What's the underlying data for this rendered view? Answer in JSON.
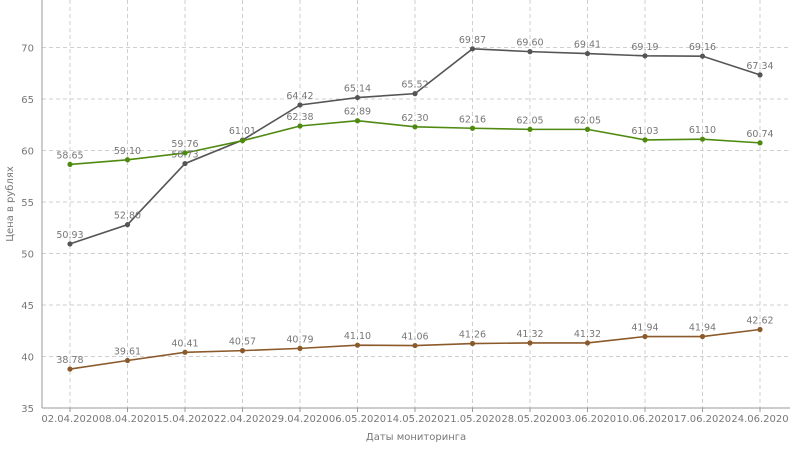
{
  "chart_data": {
    "type": "line",
    "xlabel": "Даты мониторинга",
    "ylabel": "Цена в рублях",
    "ylim": [
      35,
      72
    ],
    "yticks": [
      35,
      40,
      45,
      50,
      55,
      60,
      65,
      70
    ],
    "grid": true,
    "categories": [
      "02.04.2020",
      "08.04.2020",
      "15.04.2020",
      "22.04.2020",
      "29.04.2020",
      "06.05.2020",
      "14.05.2020",
      "21.05.2020",
      "28.05.2020",
      "03.06.2020",
      "10.06.2020",
      "17.06.2020",
      "24.06.2020"
    ],
    "series": [
      {
        "color": "#555555",
        "values": [
          50.93,
          52.8,
          58.73,
          61.01,
          64.42,
          65.14,
          65.52,
          69.87,
          69.6,
          69.41,
          69.19,
          69.16,
          67.34
        ],
        "labels": [
          "50.93",
          "52.80",
          "58.73",
          "61.01",
          "64.42",
          "65.14",
          "65.52",
          "69.87",
          "69.60",
          "69.41",
          "69.19",
          "69.16",
          "67.34"
        ]
      },
      {
        "color": "#4f8a10",
        "values": [
          58.65,
          59.1,
          59.76,
          60.95,
          62.38,
          62.89,
          62.3,
          62.16,
          62.05,
          62.05,
          61.03,
          61.1,
          60.74
        ],
        "labels": [
          "58.65",
          "59.10",
          "59.76",
          "",
          "62.38",
          "62.89",
          "62.30",
          "62.16",
          "62.05",
          "62.05",
          "61.03",
          "61.10",
          "60.74"
        ]
      },
      {
        "color": "#8b5a2b",
        "values": [
          38.78,
          39.61,
          40.41,
          40.57,
          40.79,
          41.1,
          41.06,
          41.26,
          41.32,
          41.32,
          41.94,
          41.94,
          42.62
        ],
        "labels": [
          "38.78",
          "39.61",
          "40.41",
          "40.57",
          "40.79",
          "41.10",
          "41.06",
          "41.26",
          "41.32",
          "41.32",
          "41.94",
          "41.94",
          "42.62"
        ]
      }
    ]
  }
}
